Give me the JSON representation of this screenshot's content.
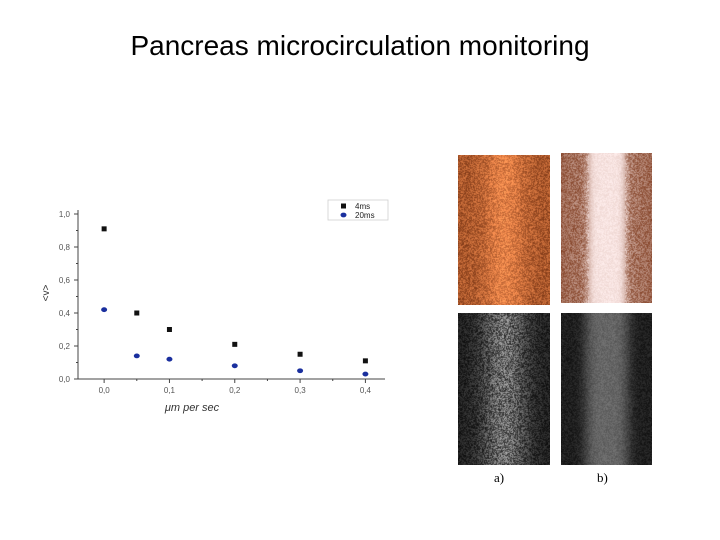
{
  "slide": {
    "title": "Pancreas microcirculation monitoring"
  },
  "chart_data": {
    "type": "scatter",
    "xlabel": "μm per sec",
    "ylabel": "<v>",
    "xlim": [
      -0.04,
      0.43
    ],
    "ylim": [
      0.0,
      1.0
    ],
    "x_ticks": [
      "0,0",
      "0,1",
      "0,2",
      "0,3",
      "0,4"
    ],
    "y_ticks": [
      "0,0",
      "0,2",
      "0,4",
      "0,6",
      "0,8",
      "1,0"
    ],
    "legend_position": "top-right",
    "series": [
      {
        "name": "4ms",
        "marker": "square",
        "color": "#111111",
        "x": [
          0.0,
          0.05,
          0.1,
          0.2,
          0.3,
          0.4
        ],
        "y": [
          0.91,
          0.4,
          0.3,
          0.21,
          0.15,
          0.11
        ]
      },
      {
        "name": "20ms",
        "marker": "circle",
        "color": "#1a2f9e",
        "x": [
          0.0,
          0.05,
          0.1,
          0.2,
          0.3,
          0.4
        ],
        "y": [
          0.42,
          0.14,
          0.12,
          0.08,
          0.05,
          0.03
        ]
      }
    ]
  },
  "images": {
    "label_a": "a)",
    "label_b": "b)"
  }
}
